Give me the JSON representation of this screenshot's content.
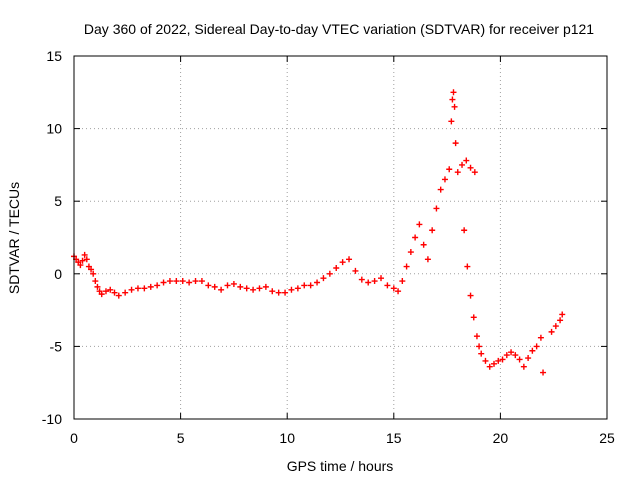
{
  "chart_data": {
    "type": "scatter",
    "title": "Day 360 of 2022, Sidereal Day-to-day VTEC variation (SDTVAR) for receiver p121",
    "xlabel": "GPS time / hours",
    "ylabel": "SDTVAR / TECUs",
    "xlim": [
      0,
      25
    ],
    "ylim": [
      -10,
      15
    ],
    "xticks": [
      0,
      5,
      10,
      15,
      20,
      25
    ],
    "yticks": [
      -10,
      -5,
      0,
      5,
      10,
      15
    ],
    "xtick_labels": [
      "0",
      "5",
      "10",
      "15",
      "20",
      "25"
    ],
    "ytick_labels": [
      "-10",
      "-5",
      "0",
      "5",
      "10",
      "15"
    ],
    "grid": true,
    "marker": "+",
    "series": [
      {
        "name": "SDTVAR",
        "color": "#ff0000",
        "points": [
          [
            0.0,
            1.2
          ],
          [
            0.1,
            1.0
          ],
          [
            0.2,
            0.8
          ],
          [
            0.3,
            0.6
          ],
          [
            0.4,
            0.9
          ],
          [
            0.5,
            1.3
          ],
          [
            0.6,
            1.0
          ],
          [
            0.7,
            0.5
          ],
          [
            0.8,
            0.3
          ],
          [
            0.9,
            0.0
          ],
          [
            1.0,
            -0.5
          ],
          [
            1.1,
            -0.9
          ],
          [
            1.2,
            -1.2
          ],
          [
            1.3,
            -1.4
          ],
          [
            1.5,
            -1.2
          ],
          [
            1.7,
            -1.1
          ],
          [
            1.9,
            -1.3
          ],
          [
            2.1,
            -1.5
          ],
          [
            2.4,
            -1.3
          ],
          [
            2.7,
            -1.1
          ],
          [
            3.0,
            -1.0
          ],
          [
            3.3,
            -1.0
          ],
          [
            3.6,
            -0.9
          ],
          [
            3.9,
            -0.8
          ],
          [
            4.2,
            -0.6
          ],
          [
            4.5,
            -0.5
          ],
          [
            4.8,
            -0.5
          ],
          [
            5.1,
            -0.5
          ],
          [
            5.4,
            -0.6
          ],
          [
            5.7,
            -0.5
          ],
          [
            6.0,
            -0.5
          ],
          [
            6.3,
            -0.8
          ],
          [
            6.6,
            -0.9
          ],
          [
            6.9,
            -1.1
          ],
          [
            7.2,
            -0.8
          ],
          [
            7.5,
            -0.7
          ],
          [
            7.8,
            -0.9
          ],
          [
            8.1,
            -1.0
          ],
          [
            8.4,
            -1.1
          ],
          [
            8.7,
            -1.0
          ],
          [
            9.0,
            -0.9
          ],
          [
            9.3,
            -1.2
          ],
          [
            9.6,
            -1.3
          ],
          [
            9.9,
            -1.3
          ],
          [
            10.2,
            -1.1
          ],
          [
            10.5,
            -1.0
          ],
          [
            10.8,
            -0.8
          ],
          [
            11.1,
            -0.8
          ],
          [
            11.4,
            -0.6
          ],
          [
            11.7,
            -0.3
          ],
          [
            12.0,
            0.0
          ],
          [
            12.3,
            0.4
          ],
          [
            12.6,
            0.8
          ],
          [
            12.9,
            1.0
          ],
          [
            13.2,
            0.2
          ],
          [
            13.5,
            -0.4
          ],
          [
            13.8,
            -0.6
          ],
          [
            14.1,
            -0.5
          ],
          [
            14.4,
            -0.3
          ],
          [
            14.7,
            -0.8
          ],
          [
            15.0,
            -1.0
          ],
          [
            15.2,
            -1.2
          ],
          [
            15.4,
            -0.5
          ],
          [
            15.6,
            0.5
          ],
          [
            15.8,
            1.5
          ],
          [
            16.0,
            2.5
          ],
          [
            16.2,
            3.4
          ],
          [
            16.4,
            2.0
          ],
          [
            16.6,
            1.0
          ],
          [
            16.8,
            3.0
          ],
          [
            17.0,
            4.5
          ],
          [
            17.2,
            5.8
          ],
          [
            17.4,
            6.5
          ],
          [
            17.6,
            7.2
          ],
          [
            17.7,
            10.5
          ],
          [
            17.75,
            12.0
          ],
          [
            17.8,
            12.5
          ],
          [
            17.85,
            11.5
          ],
          [
            17.9,
            9.0
          ],
          [
            18.0,
            7.0
          ],
          [
            18.2,
            7.5
          ],
          [
            18.4,
            7.8
          ],
          [
            18.6,
            7.3
          ],
          [
            18.8,
            7.0
          ],
          [
            18.3,
            3.0
          ],
          [
            18.45,
            0.5
          ],
          [
            18.6,
            -1.5
          ],
          [
            18.75,
            -3.0
          ],
          [
            18.9,
            -4.3
          ],
          [
            19.0,
            -5.0
          ],
          [
            19.1,
            -5.5
          ],
          [
            19.3,
            -6.0
          ],
          [
            19.5,
            -6.4
          ],
          [
            19.7,
            -6.2
          ],
          [
            19.9,
            -6.0
          ],
          [
            20.1,
            -5.9
          ],
          [
            20.3,
            -5.6
          ],
          [
            20.5,
            -5.4
          ],
          [
            20.7,
            -5.6
          ],
          [
            20.9,
            -5.9
          ],
          [
            21.1,
            -6.4
          ],
          [
            21.3,
            -5.8
          ],
          [
            21.5,
            -5.3
          ],
          [
            21.7,
            -5.0
          ],
          [
            21.9,
            -4.4
          ],
          [
            22.0,
            -6.8
          ],
          [
            22.4,
            -4.0
          ],
          [
            22.6,
            -3.6
          ],
          [
            22.8,
            -3.2
          ],
          [
            22.9,
            -2.8
          ]
        ]
      }
    ]
  }
}
